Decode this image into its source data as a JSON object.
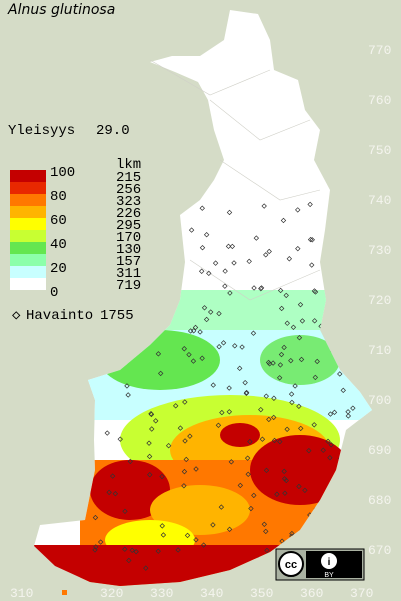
{
  "title": "Alnus glutinosa",
  "frequency": {
    "label": "Yleisyys",
    "value": "29.0"
  },
  "legend": {
    "scale_labels": [
      "100",
      "80",
      "60",
      "40",
      "20",
      "0"
    ],
    "band_colors": [
      "#c40000",
      "#e82800",
      "#ff7800",
      "#ffb400",
      "#ffff00",
      "#c8ff32",
      "#64e650",
      "#8cffaa",
      "#c8ffff",
      "#ffffff"
    ],
    "count_header": "lkm",
    "counts": [
      "215",
      "256",
      "323",
      "226",
      "295",
      "170",
      "130",
      "157",
      "311",
      "719"
    ]
  },
  "observations": {
    "label": "Havainto",
    "value": "1755"
  },
  "grid": {
    "northing": [
      "770",
      "760",
      "750",
      "740",
      "730",
      "720",
      "710",
      "700",
      "690",
      "680",
      "670"
    ],
    "easting": [
      "310",
      "320",
      "330",
      "340",
      "350",
      "360",
      "370"
    ]
  },
  "license": "BY"
}
